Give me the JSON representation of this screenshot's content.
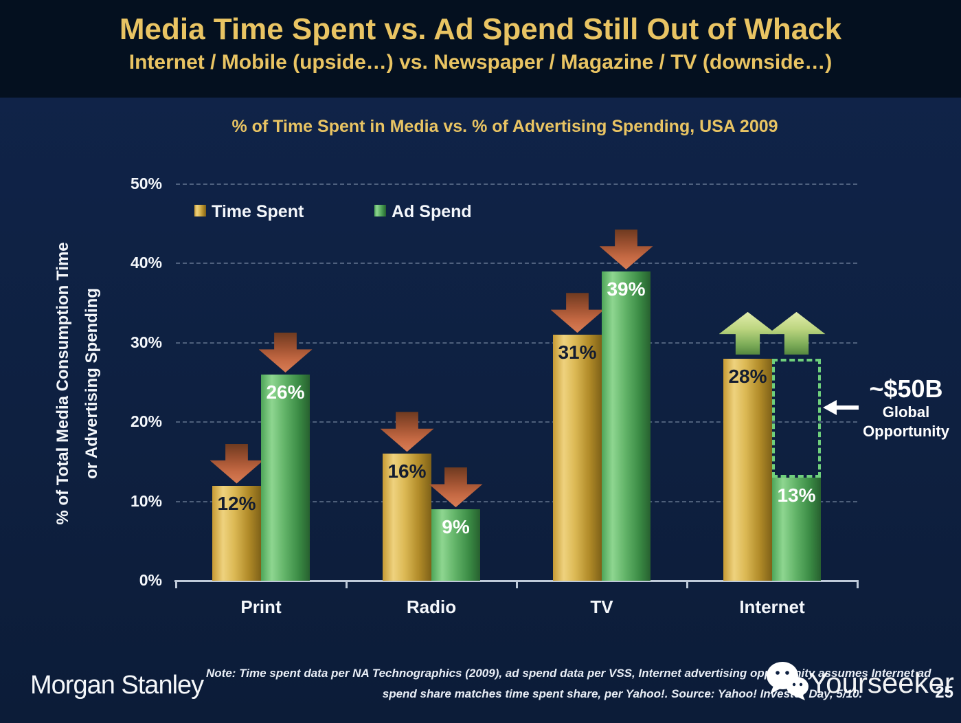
{
  "slide": {
    "title": "Media Time Spent vs. Ad Spend Still Out of Whack",
    "subtitle": "Internet / Mobile (upside…) vs. Newspaper / Magazine / TV (downside…)"
  },
  "colors": {
    "header_background": "#04101f",
    "body_background": "#10244a",
    "title_gold": "#e9c463",
    "time_spent_gold": "#dcb955",
    "ad_spend_green": "#63b469",
    "down_arrow_red": "#c66a44",
    "up_arrow_green": "#bcd57f",
    "gap_box_dash_green": "#6fd07c",
    "text_white": "#f4f7fb"
  },
  "chart_data": {
    "type": "bar",
    "title": "% of Time Spent in Media vs. % of Advertising Spending, USA 2009",
    "categories": [
      "Print",
      "Radio",
      "TV",
      "Internet"
    ],
    "series": [
      {
        "name": "Time Spent",
        "values": [
          12,
          16,
          31,
          28
        ],
        "swatch": "gold",
        "label_color": "#131c30",
        "trends": [
          "down",
          "down",
          "down",
          "up"
        ]
      },
      {
        "name": "Ad Spend",
        "values": [
          26,
          9,
          39,
          13
        ],
        "swatch": "green",
        "label_color": "#ffffff",
        "trends": [
          "down",
          "down",
          "down",
          "up"
        ]
      }
    ],
    "ylabel_line1": "% of Total Media Consumption Time",
    "ylabel_line2": "or Advertising Spending",
    "yticks": [
      0,
      10,
      20,
      30,
      40,
      50
    ],
    "ylim": [
      0,
      50
    ],
    "grid": "horizontal dashed gridlines at each 10%",
    "legend_position": "top-left inside plot area",
    "annotation": {
      "value": "~$50B",
      "label_line1": "Global",
      "label_line2": "Opportunity",
      "category": "Internet",
      "gap_from_pct": 28,
      "gap_to_pct": 13
    }
  },
  "footer": {
    "brand": "Morgan Stanley",
    "note_line1": "Note: Time spent data per NA Technographics (2009), ad spend data per VSS, Internet advertising opportunity assumes Internet ad",
    "note_line2": "spend share matches time spent share, per Yahoo!. Source: Yahoo! Investor Day, 5/10.",
    "watermark": "Yourseeker",
    "watermark_icon": "wechat-icon",
    "page_number": "25"
  }
}
